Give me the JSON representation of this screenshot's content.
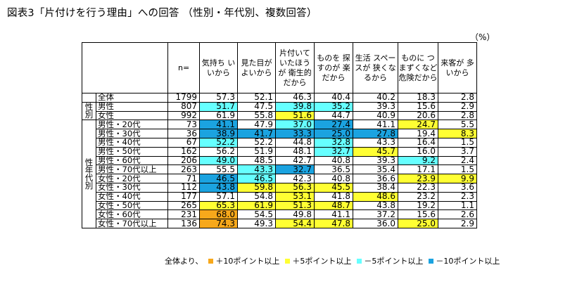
{
  "title": "図表3「片付けを行う理由」への回答 （性別・年代別、複数回答）",
  "unit_label": "（%）",
  "columns": [
    {
      "key": "n",
      "label": "n="
    },
    {
      "key": "kimochi",
      "label": "気持ち いいから"
    },
    {
      "key": "mitame",
      "label": "見た目が よいから"
    },
    {
      "key": "eisei",
      "label": "片付いて いたほうが 衛生的 だから"
    },
    {
      "key": "sagasu",
      "label": "ものを 探すのが 楽だから"
    },
    {
      "key": "space",
      "label": "生活 スペースが 狭くなるから"
    },
    {
      "key": "kiken",
      "label": "ものに つまずくなど 危険だから"
    },
    {
      "key": "raikyaku",
      "label": "来客が 多いから"
    }
  ],
  "groups": {
    "total": "",
    "sex": "性別",
    "sexage": "性年代別"
  },
  "colors": {
    "plus10": "#f7a81b",
    "plus5": "#ffff33",
    "minus5": "#66ffff",
    "minus10": "#1ba3e0"
  },
  "legend": {
    "prefix": "全体より、",
    "items": [
      {
        "key": "plus10",
        "label": "＋10ポイント以上"
      },
      {
        "key": "plus5",
        "label": "＋5ポイント以上"
      },
      {
        "key": "minus5",
        "label": "－5ポイント以上"
      },
      {
        "key": "minus10",
        "label": "－10ポイント以上"
      }
    ]
  },
  "chart_data": {
    "type": "table",
    "title": "図表3「片付けを行う理由」への回答 （性別・年代別、複数回答）",
    "unit": "%",
    "columns": [
      "n=",
      "気持ちいいから",
      "見た目がよいから",
      "片付いていたほうが衛生的だから",
      "ものを探すのが楽だから",
      "生活スペースが狭くなるから",
      "ものにつまずくなど危険だから",
      "来客が多いから"
    ],
    "rows": [
      {
        "group": "total",
        "label": "全体",
        "n": "1799",
        "values": [
          "57.3",
          "52.1",
          "46.3",
          "40.4",
          "40.2",
          "18.3",
          "2.8"
        ],
        "colors": [
          "",
          "",
          "",
          "",
          "",
          "",
          ""
        ]
      },
      {
        "group": "sex",
        "label": "男性",
        "n": "807",
        "values": [
          "51.7",
          "47.5",
          "39.8",
          "35.2",
          "39.3",
          "15.6",
          "2.9"
        ],
        "colors": [
          "minus5",
          "",
          "minus5",
          "minus5",
          "",
          "",
          ""
        ]
      },
      {
        "group": "sex",
        "label": "女性",
        "n": "992",
        "values": [
          "61.9",
          "55.8",
          "51.6",
          "44.7",
          "40.9",
          "20.6",
          "2.8"
        ],
        "colors": [
          "",
          "",
          "plus5",
          "",
          "",
          "",
          ""
        ]
      },
      {
        "group": "sexage",
        "label": "男性・20代",
        "n": "73",
        "values": [
          "41.1",
          "47.9",
          "37.0",
          "27.4",
          "41.1",
          "24.7",
          "5.5"
        ],
        "colors": [
          "minus10",
          "",
          "minus5",
          "minus10",
          "",
          "plus5",
          ""
        ]
      },
      {
        "group": "sexage",
        "label": "男性・30代",
        "n": "36",
        "values": [
          "38.9",
          "41.7",
          "33.3",
          "25.0",
          "27.8",
          "19.4",
          "8.3"
        ],
        "colors": [
          "minus10",
          "minus10",
          "minus10",
          "minus10",
          "minus10",
          "",
          "plus5"
        ]
      },
      {
        "group": "sexage",
        "label": "男性・40代",
        "n": "67",
        "values": [
          "52.2",
          "52.2",
          "44.8",
          "32.8",
          "43.3",
          "16.4",
          "1.5"
        ],
        "colors": [
          "minus5",
          "",
          "",
          "minus5",
          "",
          "",
          ""
        ]
      },
      {
        "group": "sexage",
        "label": "男性・50代",
        "n": "162",
        "values": [
          "56.2",
          "51.9",
          "48.1",
          "32.7",
          "45.7",
          "16.0",
          "3.7"
        ],
        "colors": [
          "",
          "",
          "",
          "minus5",
          "plus5",
          "",
          ""
        ]
      },
      {
        "group": "sexage",
        "label": "男性・60代",
        "n": "206",
        "values": [
          "49.0",
          "48.5",
          "42.7",
          "40.8",
          "39.3",
          "9.2",
          "2.4"
        ],
        "colors": [
          "minus5",
          "",
          "",
          "",
          "",
          "minus5",
          ""
        ]
      },
      {
        "group": "sexage",
        "label": "男性・70代以上",
        "n": "263",
        "values": [
          "55.5",
          "43.3",
          "32.7",
          "36.5",
          "35.4",
          "17.1",
          "1.5"
        ],
        "colors": [
          "",
          "minus5",
          "minus10",
          "",
          "",
          "",
          ""
        ]
      },
      {
        "group": "sexage",
        "label": "女性・20代",
        "n": "71",
        "values": [
          "46.5",
          "46.5",
          "42.3",
          "40.8",
          "36.6",
          "23.9",
          "9.9"
        ],
        "colors": [
          "minus10",
          "minus5",
          "",
          "",
          "",
          "plus5",
          "plus5"
        ]
      },
      {
        "group": "sexage",
        "label": "女性・30代",
        "n": "112",
        "values": [
          "43.8",
          "59.8",
          "56.3",
          "45.5",
          "38.4",
          "22.3",
          "3.6"
        ],
        "colors": [
          "minus10",
          "plus5",
          "plus5",
          "plus5",
          "",
          "",
          ""
        ]
      },
      {
        "group": "sexage",
        "label": "女性・40代",
        "n": "177",
        "values": [
          "57.1",
          "54.8",
          "53.1",
          "41.8",
          "48.6",
          "23.2",
          "2.3"
        ],
        "colors": [
          "",
          "",
          "plus5",
          "",
          "plus5",
          "",
          ""
        ]
      },
      {
        "group": "sexage",
        "label": "女性・50代",
        "n": "265",
        "values": [
          "65.3",
          "61.9",
          "51.3",
          "48.7",
          "43.8",
          "19.2",
          "1.1"
        ],
        "colors": [
          "plus5",
          "plus5",
          "plus5",
          "plus5",
          "",
          "",
          ""
        ]
      },
      {
        "group": "sexage",
        "label": "女性・60代",
        "n": "231",
        "values": [
          "68.0",
          "54.5",
          "49.8",
          "41.1",
          "37.2",
          "15.6",
          "2.6"
        ],
        "colors": [
          "plus10",
          "",
          "",
          "",
          "",
          "",
          ""
        ]
      },
      {
        "group": "sexage",
        "label": "女性・70代以上",
        "n": "136",
        "values": [
          "74.3",
          "49.3",
          "54.4",
          "47.8",
          "36.0",
          "25.0",
          "2.9"
        ],
        "colors": [
          "plus10",
          "",
          "plus5",
          "plus5",
          "",
          "plus5",
          ""
        ]
      }
    ]
  }
}
